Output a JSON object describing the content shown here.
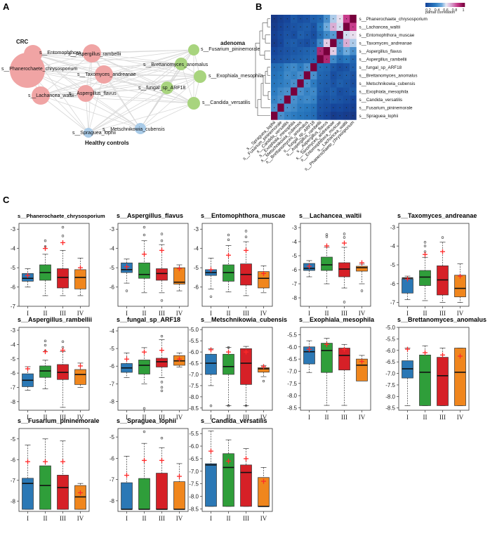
{
  "panels": {
    "a": "A",
    "b": "B",
    "c": "C"
  },
  "colors": {
    "I": "#2b78b5",
    "II": "#2f9e3a",
    "III": "#d62027",
    "IV": "#f0861d",
    "mean_marker": "#ff2a2a",
    "crc_node": "#f0a4a4",
    "adenoma_node": "#a8d47e",
    "healthy_node": "#a9cbe8",
    "edge": "#d8d8d8"
  },
  "network": {
    "groups": [
      "CRC",
      "adenoma",
      "Healthy  controls"
    ],
    "nodes": [
      {
        "label": "s__Phanerochaete_chrysosporium",
        "group": "CRC"
      },
      {
        "label": "s__Entomophthora_muscae",
        "group": "CRC"
      },
      {
        "label": "s__Aspergillus_rambellii",
        "group": "CRC"
      },
      {
        "label": "s__Taxomyces_andreanae",
        "group": "CRC"
      },
      {
        "label": "s__Aspergillus_flavus",
        "group": "CRC"
      },
      {
        "label": "s__Lachancea_waltii",
        "group": "CRC"
      },
      {
        "label": "s__Fusarium_pininemorale",
        "group": "adenoma"
      },
      {
        "label": "s__Brettanomyces_anomalus",
        "group": "adenoma"
      },
      {
        "label": "s__Exophiala_mesophila",
        "group": "adenoma"
      },
      {
        "label": "s__fungal_sp_ARF18",
        "group": "adenoma"
      },
      {
        "label": "s__Candida_versatilis",
        "group": "adenoma"
      },
      {
        "label": "s__Metschnikowia_cubensis",
        "group": "Healthy  controls"
      },
      {
        "label": "s__Spraguea_lophii",
        "group": "Healthy  controls"
      }
    ]
  },
  "heatmap": {
    "legend_title": "partial correlation",
    "legend_ticks": [
      "0.2",
      "0.4",
      "0.6",
      "0.8",
      "1"
    ],
    "rows": [
      "s__Phanerochaete_chrysosporium",
      "s__Lachancea_waltii",
      "s__Entomophthora_muscae",
      "s__Taxomyces_andreanae",
      "s__Aspergillus_flavus",
      "s__Aspergillus_rambellii",
      "s__fungal_sp_ARF18",
      "s__Brettanomyces_anomalus",
      "s__Metschnikowia_cubensis",
      "s__Exophiala_mesophila",
      "s__Candida_versatilis",
      "s__Fusarium_pininemorale",
      "s__Spraguea_lophii"
    ],
    "cols": [
      "s__Spraguea_lophii",
      "s__Fusarium_pininemorale",
      "s__Candida_versatilis",
      "s__Exophiala_mesophila",
      "s__Metschnikowia_cubensis",
      "s__Brettanomyces_anomalus",
      "s__fungal_sp_ARF18",
      "s__Aspergillus_rambellii",
      "s__Aspergillus_flavus",
      "s__Taxomyces_andreanae",
      "s__Entomophthora_muscae",
      "s__Lachancea_waltii",
      "s__Phanerochaete_chrysosporium"
    ],
    "values": [
      [
        0.08,
        0.12,
        0.15,
        0.22,
        0.18,
        0.2,
        0.25,
        0.28,
        0.42,
        0.55,
        0.62,
        0.85,
        1.0
      ],
      [
        0.1,
        0.14,
        0.18,
        0.2,
        0.22,
        0.24,
        0.2,
        0.35,
        0.5,
        0.7,
        0.58,
        1.0,
        0.85
      ],
      [
        0.12,
        0.16,
        0.2,
        0.18,
        0.25,
        0.22,
        0.18,
        0.3,
        0.4,
        0.45,
        1.0,
        0.58,
        0.62
      ],
      [
        0.1,
        0.15,
        0.22,
        0.24,
        0.2,
        0.18,
        0.22,
        0.4,
        0.65,
        1.0,
        0.45,
        0.7,
        0.55
      ],
      [
        0.15,
        0.18,
        0.2,
        0.22,
        0.24,
        0.26,
        0.28,
        0.9,
        1.0,
        0.65,
        0.4,
        0.5,
        0.42
      ],
      [
        0.18,
        0.2,
        0.22,
        0.25,
        0.26,
        0.28,
        0.3,
        1.0,
        0.9,
        0.4,
        0.3,
        0.35,
        0.28
      ],
      [
        0.3,
        0.32,
        0.38,
        0.4,
        0.36,
        0.42,
        1.0,
        0.3,
        0.28,
        0.22,
        0.18,
        0.2,
        0.25
      ],
      [
        0.32,
        0.35,
        0.4,
        0.38,
        0.42,
        1.0,
        0.42,
        0.28,
        0.26,
        0.18,
        0.22,
        0.24,
        0.2
      ],
      [
        0.34,
        0.36,
        0.38,
        0.42,
        1.0,
        0.42,
        0.36,
        0.26,
        0.24,
        0.2,
        0.25,
        0.22,
        0.18
      ],
      [
        0.36,
        0.4,
        0.42,
        1.0,
        0.42,
        0.38,
        0.4,
        0.25,
        0.22,
        0.24,
        0.18,
        0.2,
        0.22
      ],
      [
        0.38,
        0.42,
        1.0,
        0.42,
        0.38,
        0.4,
        0.38,
        0.22,
        0.2,
        0.22,
        0.2,
        0.18,
        0.15
      ],
      [
        0.42,
        1.0,
        0.42,
        0.4,
        0.36,
        0.35,
        0.32,
        0.2,
        0.18,
        0.15,
        0.16,
        0.14,
        0.12
      ],
      [
        1.0,
        0.42,
        0.38,
        0.36,
        0.34,
        0.32,
        0.3,
        0.18,
        0.15,
        0.1,
        0.12,
        0.1,
        0.08
      ]
    ]
  },
  "chart_data": {
    "type": "boxplot",
    "categories": [
      "I",
      "II",
      "III",
      "IV"
    ],
    "panels": [
      {
        "title": "s__Phanerochaete_chrysosporium",
        "small_title": true,
        "ylim": [
          -7,
          -2.7
        ],
        "yticks": [
          -7,
          -6,
          -5,
          -4,
          -3
        ],
        "boxes": [
          [
            -6.0,
            -5.7,
            -5.55,
            -5.3,
            -5.05
          ],
          [
            -6.45,
            -5.65,
            -5.25,
            -4.85,
            -4.3
          ],
          [
            -6.45,
            -6.05,
            -5.5,
            -5.05,
            -4.1
          ],
          [
            -6.45,
            -6.1,
            -5.5,
            -5.1,
            -4.5
          ]
        ],
        "means": [
          -5.4,
          -4.0,
          -3.7,
          -5.0
        ],
        "outliers": [
          [],
          [
            -3.9,
            -3.6
          ],
          [
            -3.35,
            -2.9
          ],
          []
        ]
      },
      {
        "title": "s__Aspergillus_flavus",
        "ylim": [
          -7,
          -2.7
        ],
        "yticks": [
          -6,
          -5,
          -4,
          -3
        ],
        "boxes": [
          [
            -5.8,
            -5.25,
            -5.1,
            -4.75,
            -4.55
          ],
          [
            -6.3,
            -5.55,
            -5.35,
            -4.75,
            -3.6
          ],
          [
            -6.3,
            -5.65,
            -5.3,
            -5.05,
            -3.8
          ],
          [
            -6.2,
            -5.85,
            -5.75,
            -5.0,
            -4.85
          ]
        ],
        "means": [
          -4.95,
          -4.3,
          -4.1,
          -5.05
        ],
        "outliers": [
          [
            -6.2
          ],
          [
            -3.3,
            -2.9
          ],
          [
            -3.6,
            -3.25,
            -6.7
          ],
          []
        ]
      },
      {
        "title": "s__Entomophthora_muscae",
        "ylim": [
          -7,
          -2.7
        ],
        "yticks": [
          -6,
          -5,
          -4,
          -3
        ],
        "boxes": [
          [
            -6.1,
            -5.4,
            -5.25,
            -5.1,
            -4.5
          ],
          [
            -6.25,
            -5.7,
            -5.25,
            -4.85,
            -3.85
          ],
          [
            -6.45,
            -5.9,
            -5.35,
            -4.8,
            -3.65
          ],
          [
            -6.3,
            -6.05,
            -5.55,
            -5.2,
            -4.9
          ]
        ],
        "means": [
          -5.1,
          -4.35,
          -4.1,
          -5.3
        ],
        "outliers": [
          [
            -6.5
          ],
          [
            -3.55,
            -3.3
          ],
          [
            -3.4,
            -3.1
          ],
          []
        ]
      },
      {
        "title": "s__Lachancea_waltii",
        "ylim": [
          -8.6,
          -2.7
        ],
        "yticks": [
          -8,
          -7,
          -6,
          -5,
          -4,
          -3
        ],
        "boxes": [
          [
            -6.5,
            -6.05,
            -5.9,
            -5.55,
            -5.35
          ],
          [
            -7.0,
            -6.05,
            -5.65,
            -5.1,
            -4.4
          ],
          [
            -7.3,
            -6.5,
            -5.95,
            -5.5,
            -4.4
          ],
          [
            -7.0,
            -6.1,
            -5.85,
            -5.75,
            -5.6
          ]
        ],
        "means": [
          -5.75,
          -4.3,
          -4.1,
          -5.5
        ],
        "outliers": [
          [],
          [
            -3.65,
            -3.5
          ],
          [
            -3.7,
            -3.45,
            -8.3
          ],
          [
            -7.5
          ]
        ]
      },
      {
        "title": "s__Taxomyces_andreanae",
        "ylim": [
          -7.2,
          -2.8
        ],
        "yticks": [
          -7,
          -6,
          -5,
          -4,
          -3
        ],
        "boxes": [
          [
            -6.85,
            -6.5,
            -5.7,
            -5.75,
            -5.6
          ],
          [
            -6.9,
            -6.1,
            -5.65,
            -5.3,
            -4.6
          ],
          [
            -7.0,
            -6.6,
            -5.8,
            -5.05,
            -3.8
          ],
          [
            -7.0,
            -6.7,
            -6.25,
            -5.55,
            -4.95
          ]
        ],
        "means": [
          -5.75,
          -4.45,
          -4.3,
          -5.6
        ],
        "outliers": [
          [],
          [
            -4.3,
            -4.0,
            -3.8
          ],
          [
            -3.55
          ],
          []
        ]
      },
      {
        "title": "s__Aspergillus_rambellii",
        "ylim": [
          -8.6,
          -2.8
        ],
        "yticks": [
          -8,
          -7,
          -6,
          -5,
          -4,
          -3
        ],
        "boxes": [
          [
            -7.2,
            -6.95,
            -6.5,
            -6.05,
            -5.55
          ],
          [
            -7.1,
            -6.3,
            -5.85,
            -5.5,
            -5.1
          ],
          [
            -8.4,
            -6.45,
            -5.95,
            -5.4,
            -4.5
          ],
          [
            -7.0,
            -6.8,
            -6.1,
            -5.75,
            -5.3
          ]
        ],
        "means": [
          -5.7,
          -4.5,
          -4.4,
          -5.5
        ],
        "outliers": [
          [],
          [
            -4.45,
            -4.05,
            -3.75
          ],
          [
            -4.2,
            -3.8
          ],
          []
        ]
      },
      {
        "title": "s__fungal_sp_ARF18",
        "ylim": [
          -8.5,
          -3.8
        ],
        "yticks": [
          -8,
          -7,
          -6,
          -5,
          -4
        ],
        "boxes": [
          [
            -6.65,
            -6.35,
            -6.1,
            -5.85,
            -5.25
          ],
          [
            -7.0,
            -6.45,
            -5.95,
            -5.65,
            -4.95
          ],
          [
            -6.65,
            -6.05,
            -5.75,
            -5.55,
            -4.5
          ],
          [
            -6.05,
            -5.95,
            -5.7,
            -5.4,
            -5.25
          ]
        ],
        "means": [
          -5.6,
          -5.2,
          -5.1,
          -5.6
        ],
        "outliers": [
          [],
          [
            -8.4
          ],
          [
            -6.9,
            -7.2,
            -7.4,
            -4.3
          ],
          []
        ]
      },
      {
        "title": "s__Metschnikowia_cubensis",
        "ylim": [
          -8.6,
          -4.9
        ],
        "yticks": [
          -8.5,
          -8.0,
          -7.5,
          -7.0,
          -6.5,
          -6.0,
          -5.5,
          -5.0
        ],
        "boxes": [
          [
            -7.5,
            -7.0,
            -6.5,
            -6.1,
            -5.85
          ],
          [
            -8.4,
            -7.0,
            -6.65,
            -6.1,
            -5.8
          ],
          [
            -8.4,
            -7.45,
            -6.5,
            -5.85,
            -5.75
          ],
          [
            -7.1,
            -6.9,
            -6.75,
            -6.7,
            -6.6
          ]
        ],
        "means": [
          -5.9,
          -6.0,
          -6.0,
          -6.65
        ],
        "outliers": [
          [
            -8.4
          ],
          [
            -8.4,
            -5.8
          ],
          [
            -8.4
          ],
          [
            -7.3
          ]
        ]
      },
      {
        "title": "s__Exophiala_mesophila",
        "ylim": [
          -8.6,
          -5.2
        ],
        "yticks": [
          -8.5,
          -8.0,
          -7.5,
          -7.0,
          -6.5,
          -6.0,
          -5.5
        ],
        "boxes": [
          [
            -7.05,
            -6.7,
            -6.2,
            -6.0,
            -5.75
          ],
          [
            -8.4,
            -7.05,
            -6.15,
            -5.85,
            -5.65
          ],
          [
            -8.4,
            -6.95,
            -6.35,
            -6.05,
            -5.9
          ],
          [
            -7.3,
            -7.4,
            -6.75,
            -6.5,
            -6.35
          ]
        ],
        "means": [
          -6.1,
          -5.9,
          -6.1,
          -6.6
        ],
        "outliers": [
          [],
          [],
          [],
          []
        ]
      },
      {
        "title": "s__Brettanomyces_anomalus",
        "ylim": [
          -8.6,
          -5.0
        ],
        "yticks": [
          -8.5,
          -8.0,
          -7.5,
          -7.0,
          -6.5,
          -6.0,
          -5.5,
          -5.0
        ],
        "boxes": [
          [
            -8.4,
            -7.2,
            -6.8,
            -6.45,
            -5.9
          ],
          [
            -8.4,
            -8.4,
            -6.95,
            -6.2,
            -5.8
          ],
          [
            -8.4,
            -8.4,
            -7.1,
            -6.3,
            -5.9
          ],
          [
            -8.4,
            -8.4,
            -6.95,
            -5.9,
            -5.9
          ]
        ],
        "means": [
          -5.95,
          -6.1,
          -6.2,
          -6.25
        ],
        "outliers": [
          [],
          [],
          [],
          []
        ]
      },
      {
        "title": "s__Fusarium_pininemorale",
        "ylim": [
          -8.5,
          -4.5
        ],
        "yticks": [
          -8,
          -7,
          -6,
          -5
        ],
        "boxes": [
          [
            -8.4,
            -8.4,
            -7.15,
            -6.9,
            -5.3
          ],
          [
            -8.4,
            -8.4,
            -7.25,
            -6.3,
            -5.0
          ],
          [
            -8.4,
            -8.4,
            -7.35,
            -6.75,
            -5.1
          ],
          [
            -8.4,
            -8.4,
            -7.8,
            -7.25,
            -7.15
          ]
        ],
        "means": [
          -6.1,
          -6.1,
          -6.1,
          -7.6
        ],
        "outliers": [
          [],
          [],
          [],
          []
        ]
      },
      {
        "title": "s__Spraguea_lophii",
        "ylim": [
          -8.5,
          -4.6
        ],
        "yticks": [
          -8,
          -7,
          -6,
          -5
        ],
        "boxes": [
          [
            -8.4,
            -8.4,
            -8.4,
            -7.15,
            -5.9
          ],
          [
            -8.4,
            -8.4,
            -8.4,
            -6.95,
            -5.3
          ],
          [
            -8.4,
            -8.4,
            -8.4,
            -6.7,
            -5.5
          ],
          [
            -8.4,
            -8.4,
            -8.4,
            -7.1,
            -6.25
          ]
        ],
        "means": [
          -6.8,
          -6.1,
          -6.1,
          -6.85
        ],
        "outliers": [
          [],
          [
            -4.75
          ],
          [
            -5.05
          ],
          []
        ]
      },
      {
        "title": "s__Candida_versatilis",
        "ylim": [
          -8.6,
          -5.3
        ],
        "yticks": [
          -8.5,
          -8.0,
          -7.5,
          -7.0,
          -6.5,
          -6.0,
          -5.5
        ],
        "boxes": [
          [
            -8.4,
            -8.4,
            -6.75,
            -6.7,
            -5.4
          ],
          [
            -8.4,
            -8.4,
            -6.85,
            -6.3,
            -5.75
          ],
          [
            -8.4,
            -8.4,
            -7.05,
            -6.75,
            -6.1
          ],
          [
            -8.4,
            -8.4,
            -8.4,
            -7.25,
            -6.85
          ]
        ],
        "means": [
          -6.2,
          -6.6,
          -6.5,
          -7.4
        ],
        "outliers": [
          [],
          [],
          [],
          []
        ]
      }
    ]
  }
}
